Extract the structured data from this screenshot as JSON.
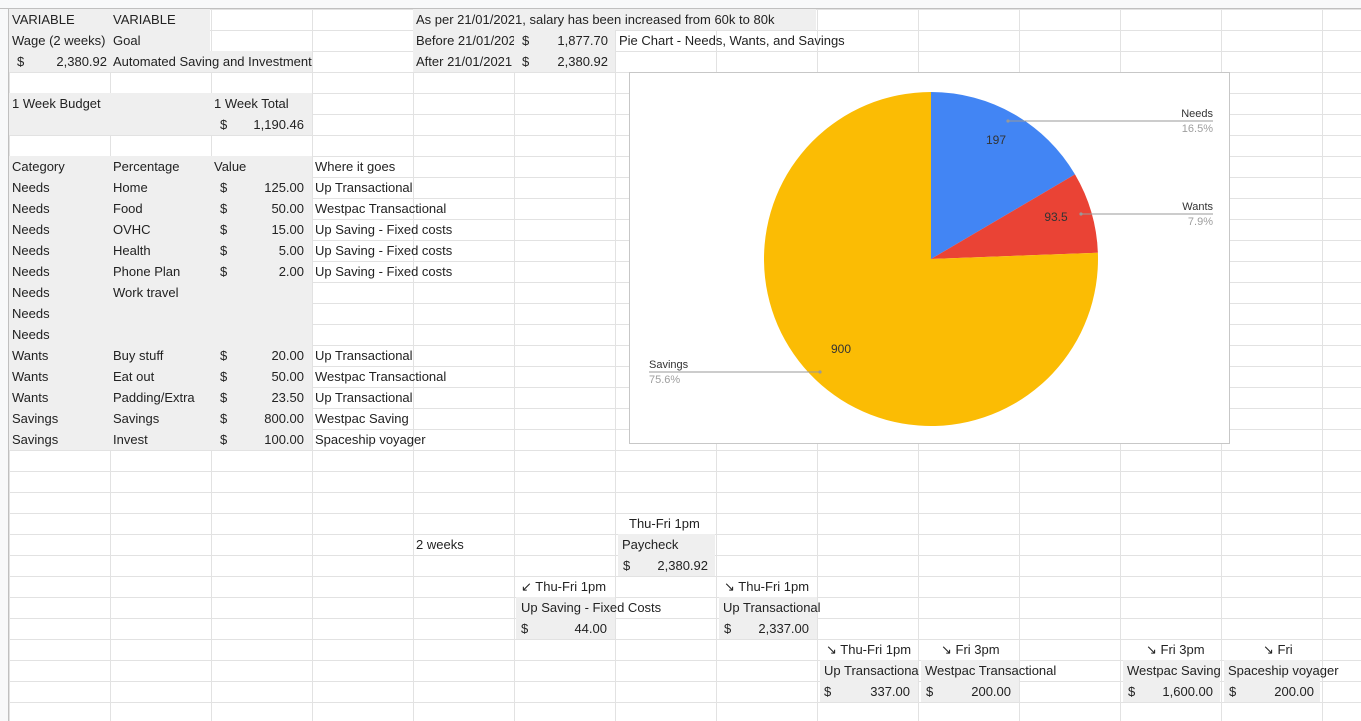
{
  "notes": {
    "salary_note": "As per 21/01/2021, salary has been increased from 60k to 80k",
    "before_label": "Before 21/01/2021",
    "after_label": "After 21/01/2021",
    "before_cur": "$",
    "before_amount": "1,877.70",
    "after_cur": "$",
    "after_amount": "2,380.92"
  },
  "header": {
    "variable_a": "VARIABLE",
    "variable_b": "VARIABLE",
    "wage_label": "Wage (2 weeks)",
    "goal_label": "Goal",
    "wage_cur": "$",
    "wage_amount": "2,380.92",
    "goal_text": "Automated Saving and Investment"
  },
  "budget": {
    "week_budget_label": "1 Week Budget",
    "week_total_label": "1 Week Total",
    "week_total_cur": "$",
    "week_total_amount": "1,190.46"
  },
  "table": {
    "headers": [
      "Category",
      "Percentage",
      "Value",
      "Where it goes"
    ],
    "rows": [
      {
        "category": "Needs",
        "item": "Home",
        "cur": "$",
        "value": "125.00",
        "where": "Up Transactional"
      },
      {
        "category": "Needs",
        "item": "Food",
        "cur": "$",
        "value": "50.00",
        "where": "Westpac Transactional"
      },
      {
        "category": "Needs",
        "item": "OVHC",
        "cur": "$",
        "value": "15.00",
        "where": "Up Saving - Fixed costs"
      },
      {
        "category": "Needs",
        "item": "Health",
        "cur": "$",
        "value": "5.00",
        "where": "Up Saving - Fixed costs"
      },
      {
        "category": "Needs",
        "item": "Phone Plan",
        "cur": "$",
        "value": "2.00",
        "where": "Up Saving - Fixed costs"
      },
      {
        "category": "Needs",
        "item": "Work travel",
        "cur": "",
        "value": "",
        "where": ""
      },
      {
        "category": "Needs",
        "item": "",
        "cur": "",
        "value": "",
        "where": ""
      },
      {
        "category": "Needs",
        "item": "",
        "cur": "",
        "value": "",
        "where": ""
      },
      {
        "category": "Wants",
        "item": "Buy stuff",
        "cur": "$",
        "value": "20.00",
        "where": "Up Transactional"
      },
      {
        "category": "Wants",
        "item": "Eat out",
        "cur": "$",
        "value": "50.00",
        "where": "Westpac Transactional"
      },
      {
        "category": "Wants",
        "item": "Padding/Extra",
        "cur": "$",
        "value": "23.50",
        "where": "Up Transactional"
      },
      {
        "category": "Savings",
        "item": "Savings",
        "cur": "$",
        "value": "800.00",
        "where": "Westpac Saving"
      },
      {
        "category": "Savings",
        "item": "Invest",
        "cur": "$",
        "value": "100.00",
        "where": "Spaceship voyager"
      }
    ]
  },
  "chart_title": "Pie Chart - Needs, Wants, and Savings",
  "chart_data": {
    "type": "pie",
    "slices": [
      {
        "label": "Needs",
        "value": 197,
        "value_label": "197",
        "percent": "16.5%",
        "color": "#4285f4"
      },
      {
        "label": "Wants",
        "value": 93.5,
        "value_label": "93.5",
        "percent": "7.9%",
        "color": "#ea4335"
      },
      {
        "label": "Savings",
        "value": 900,
        "value_label": "900",
        "percent": "75.6%",
        "color": "#fbbc04"
      }
    ]
  },
  "flow": {
    "two_weeks": "2 weeks",
    "paycheck_time": "Thu-Fri 1pm",
    "paycheck_label": "Paycheck",
    "paycheck_cur": "$",
    "paycheck_amount": "2,380.92",
    "fixed_time": "↙ Thu-Fri 1pm",
    "fixed_label": "Up Saving - Fixed Costs",
    "fixed_cur": "$",
    "fixed_amount": "44.00",
    "uptrans_time": "↘ Thu-Fri 1pm",
    "uptrans_label": "Up Transactional",
    "uptrans_cur": "$",
    "uptrans_amount": "2,337.00",
    "c1_time": "↘ Thu-Fri 1pm",
    "c1_label": "Up Transactional",
    "c1_cur": "$",
    "c1_amount": "337.00",
    "c2_time": "↘ Fri 3pm",
    "c2_label": "Westpac Transactional",
    "c2_cur": "$",
    "c2_amount": "200.00",
    "c3_time": "↘ Fri 3pm",
    "c3_label": "Westpac Saving",
    "c3_cur": "$",
    "c3_amount": "1,600.00",
    "c4_time": "↘ Fri",
    "c4_label": "Spaceship voyager",
    "c4_cur": "$",
    "c4_amount": "200.00"
  }
}
